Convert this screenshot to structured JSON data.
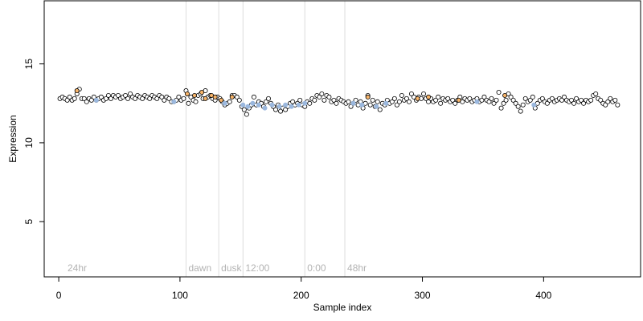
{
  "chart_data": {
    "type": "scatter",
    "title": "",
    "xlabel": "Sample index",
    "ylabel": "Expression",
    "xlim": [
      -12,
      480
    ],
    "ylim": [
      1.5,
      19
    ],
    "x_ticks": [
      0,
      100,
      200,
      300,
      400
    ],
    "y_ticks": [
      5,
      10,
      15
    ],
    "grid": false,
    "legend": "none",
    "colors": {
      "point_outline": "#000000",
      "default_fill": "#ffffff",
      "orange_fill": "#f6b46a",
      "blue_fill": "#9bb8de",
      "annotation_line": "#dcdcdc",
      "annotation_text": "#b3b3b3",
      "axis": "#000000"
    },
    "annotations": [
      {
        "x": 105,
        "label": "dawn"
      },
      {
        "x": 132,
        "label": "dusk"
      },
      {
        "x": 152,
        "label": "12:00"
      },
      {
        "x": 203,
        "label": "0:00"
      },
      {
        "x": 236,
        "label": "48hr"
      }
    ],
    "corner_label": "24hr",
    "colored_points": [
      {
        "x": 15,
        "y": 13.3,
        "fill": "orange"
      },
      {
        "x": 106,
        "y": 13.1,
        "fill": "orange"
      },
      {
        "x": 112,
        "y": 13.0,
        "fill": "orange"
      },
      {
        "x": 118,
        "y": 13.2,
        "fill": "orange"
      },
      {
        "x": 121,
        "y": 12.8,
        "fill": "orange"
      },
      {
        "x": 126,
        "y": 13.0,
        "fill": "orange"
      },
      {
        "x": 129,
        "y": 12.9,
        "fill": "orange"
      },
      {
        "x": 134,
        "y": 12.7,
        "fill": "orange"
      },
      {
        "x": 143,
        "y": 12.9,
        "fill": "orange"
      },
      {
        "x": 255,
        "y": 12.9,
        "fill": "orange"
      },
      {
        "x": 296,
        "y": 12.8,
        "fill": "orange"
      },
      {
        "x": 305,
        "y": 12.9,
        "fill": "orange"
      },
      {
        "x": 330,
        "y": 12.7,
        "fill": "orange"
      },
      {
        "x": 368,
        "y": 13.0,
        "fill": "orange"
      },
      {
        "x": 31,
        "y": 12.7,
        "fill": "blue"
      },
      {
        "x": 95,
        "y": 12.6,
        "fill": "blue"
      },
      {
        "x": 137,
        "y": 12.5,
        "fill": "blue"
      },
      {
        "x": 152,
        "y": 12.4,
        "fill": "blue"
      },
      {
        "x": 156,
        "y": 12.3,
        "fill": "blue"
      },
      {
        "x": 160,
        "y": 12.5,
        "fill": "blue"
      },
      {
        "x": 165,
        "y": 12.4,
        "fill": "blue"
      },
      {
        "x": 170,
        "y": 12.2,
        "fill": "blue"
      },
      {
        "x": 176,
        "y": 12.4,
        "fill": "blue"
      },
      {
        "x": 182,
        "y": 12.3,
        "fill": "blue"
      },
      {
        "x": 187,
        "y": 12.4,
        "fill": "blue"
      },
      {
        "x": 192,
        "y": 12.3,
        "fill": "blue"
      },
      {
        "x": 198,
        "y": 12.4,
        "fill": "blue"
      },
      {
        "x": 203,
        "y": 12.5,
        "fill": "blue"
      },
      {
        "x": 243,
        "y": 12.5,
        "fill": "blue"
      },
      {
        "x": 250,
        "y": 12.4,
        "fill": "blue"
      },
      {
        "x": 262,
        "y": 12.3,
        "fill": "blue"
      },
      {
        "x": 270,
        "y": 12.5,
        "fill": "blue"
      },
      {
        "x": 345,
        "y": 12.6,
        "fill": "blue"
      },
      {
        "x": 392,
        "y": 12.4,
        "fill": "blue"
      }
    ],
    "series": [
      {
        "values": [
          [
            1,
            12.8
          ],
          [
            3,
            12.9
          ],
          [
            5,
            12.8
          ],
          [
            7,
            12.7
          ],
          [
            9,
            12.9
          ],
          [
            11,
            12.7
          ],
          [
            13,
            12.8
          ],
          [
            15,
            13.1
          ],
          [
            17,
            13.4
          ],
          [
            19,
            12.8
          ],
          [
            21,
            12.8
          ],
          [
            23,
            12.6
          ],
          [
            25,
            12.8
          ],
          [
            27,
            12.7
          ],
          [
            29,
            12.9
          ],
          [
            31,
            12.7
          ],
          [
            33,
            12.8
          ],
          [
            35,
            12.9
          ],
          [
            37,
            12.7
          ],
          [
            39,
            12.8
          ],
          [
            41,
            13.0
          ],
          [
            43,
            12.8
          ],
          [
            45,
            13.0
          ],
          [
            47,
            12.9
          ],
          [
            49,
            13.0
          ],
          [
            51,
            12.8
          ],
          [
            53,
            12.9
          ],
          [
            55,
            13.0
          ],
          [
            57,
            12.8
          ],
          [
            59,
            13.1
          ],
          [
            61,
            12.9
          ],
          [
            63,
            12.8
          ],
          [
            65,
            13.0
          ],
          [
            67,
            12.9
          ],
          [
            69,
            12.8
          ],
          [
            71,
            13.0
          ],
          [
            73,
            12.9
          ],
          [
            75,
            12.8
          ],
          [
            77,
            13.0
          ],
          [
            79,
            12.9
          ],
          [
            81,
            12.8
          ],
          [
            83,
            13.0
          ],
          [
            85,
            12.9
          ],
          [
            87,
            12.7
          ],
          [
            89,
            12.9
          ],
          [
            91,
            12.8
          ],
          [
            93,
            12.6
          ],
          [
            95,
            12.6
          ],
          [
            97,
            12.7
          ],
          [
            99,
            12.9
          ],
          [
            101,
            12.7
          ],
          [
            103,
            12.8
          ],
          [
            105,
            13.3
          ],
          [
            107,
            12.5
          ],
          [
            109,
            12.9
          ],
          [
            111,
            12.7
          ],
          [
            113,
            12.6
          ],
          [
            115,
            13.0
          ],
          [
            117,
            13.1
          ],
          [
            119,
            12.8
          ],
          [
            121,
            13.3
          ],
          [
            123,
            12.9
          ],
          [
            125,
            13.0
          ],
          [
            127,
            12.8
          ],
          [
            129,
            12.7
          ],
          [
            131,
            12.9
          ],
          [
            133,
            12.8
          ],
          [
            135,
            12.6
          ],
          [
            137,
            12.4
          ],
          [
            139,
            12.5
          ],
          [
            141,
            12.6
          ],
          [
            143,
            13.0
          ],
          [
            145,
            13.0
          ],
          [
            147,
            12.9
          ],
          [
            149,
            12.7
          ],
          [
            151,
            12.3
          ],
          [
            153,
            12.1
          ],
          [
            155,
            11.8
          ],
          [
            157,
            12.2
          ],
          [
            159,
            12.4
          ],
          [
            161,
            12.9
          ],
          [
            163,
            12.4
          ],
          [
            165,
            12.6
          ],
          [
            167,
            12.5
          ],
          [
            169,
            12.3
          ],
          [
            171,
            12.6
          ],
          [
            173,
            12.8
          ],
          [
            175,
            12.5
          ],
          [
            177,
            12.3
          ],
          [
            179,
            12.1
          ],
          [
            181,
            12.4
          ],
          [
            183,
            12.0
          ],
          [
            185,
            12.2
          ],
          [
            187,
            12.1
          ],
          [
            189,
            12.3
          ],
          [
            191,
            12.5
          ],
          [
            193,
            12.6
          ],
          [
            195,
            12.4
          ],
          [
            197,
            12.5
          ],
          [
            199,
            12.7
          ],
          [
            201,
            12.4
          ],
          [
            203,
            12.3
          ],
          [
            205,
            12.6
          ],
          [
            207,
            12.5
          ],
          [
            209,
            12.8
          ],
          [
            211,
            12.7
          ],
          [
            213,
            13.0
          ],
          [
            215,
            12.9
          ],
          [
            217,
            13.1
          ],
          [
            219,
            12.7
          ],
          [
            221,
            13.0
          ],
          [
            223,
            12.9
          ],
          [
            225,
            12.6
          ],
          [
            227,
            12.7
          ],
          [
            229,
            12.5
          ],
          [
            231,
            12.8
          ],
          [
            233,
            12.7
          ],
          [
            235,
            12.6
          ],
          [
            237,
            12.5
          ],
          [
            239,
            12.6
          ],
          [
            241,
            12.3
          ],
          [
            243,
            12.5
          ],
          [
            245,
            12.7
          ],
          [
            247,
            12.4
          ],
          [
            249,
            12.6
          ],
          [
            251,
            12.2
          ],
          [
            253,
            12.5
          ],
          [
            255,
            13.0
          ],
          [
            257,
            12.4
          ],
          [
            259,
            12.7
          ],
          [
            261,
            12.3
          ],
          [
            263,
            12.6
          ],
          [
            265,
            12.1
          ],
          [
            267,
            12.5
          ],
          [
            269,
            12.4
          ],
          [
            271,
            12.7
          ],
          [
            273,
            12.5
          ],
          [
            275,
            12.6
          ],
          [
            277,
            12.8
          ],
          [
            279,
            12.4
          ],
          [
            281,
            12.6
          ],
          [
            283,
            13.0
          ],
          [
            285,
            12.7
          ],
          [
            287,
            12.8
          ],
          [
            289,
            12.6
          ],
          [
            291,
            13.1
          ],
          [
            293,
            12.9
          ],
          [
            295,
            12.7
          ],
          [
            297,
            12.9
          ],
          [
            299,
            12.8
          ],
          [
            301,
            13.1
          ],
          [
            303,
            12.8
          ],
          [
            305,
            12.6
          ],
          [
            307,
            12.8
          ],
          [
            309,
            12.6
          ],
          [
            311,
            12.7
          ],
          [
            313,
            12.9
          ],
          [
            315,
            12.5
          ],
          [
            317,
            12.8
          ],
          [
            319,
            12.7
          ],
          [
            321,
            12.8
          ],
          [
            323,
            12.6
          ],
          [
            325,
            12.7
          ],
          [
            327,
            12.5
          ],
          [
            329,
            12.7
          ],
          [
            331,
            12.9
          ],
          [
            333,
            12.6
          ],
          [
            335,
            12.8
          ],
          [
            337,
            12.7
          ],
          [
            339,
            12.8
          ],
          [
            341,
            12.6
          ],
          [
            343,
            12.7
          ],
          [
            345,
            12.8
          ],
          [
            347,
            12.6
          ],
          [
            349,
            12.7
          ],
          [
            351,
            12.9
          ],
          [
            353,
            12.7
          ],
          [
            355,
            12.6
          ],
          [
            357,
            12.8
          ],
          [
            359,
            12.5
          ],
          [
            361,
            12.7
          ],
          [
            363,
            13.2
          ],
          [
            365,
            12.2
          ],
          [
            367,
            12.5
          ],
          [
            369,
            12.7
          ],
          [
            371,
            13.1
          ],
          [
            373,
            12.9
          ],
          [
            375,
            12.7
          ],
          [
            377,
            12.5
          ],
          [
            379,
            12.3
          ],
          [
            381,
            12.0
          ],
          [
            383,
            12.4
          ],
          [
            385,
            12.8
          ],
          [
            387,
            12.6
          ],
          [
            389,
            12.7
          ],
          [
            391,
            12.9
          ],
          [
            393,
            12.2
          ],
          [
            395,
            12.5
          ],
          [
            397,
            12.7
          ],
          [
            399,
            12.8
          ],
          [
            401,
            12.6
          ],
          [
            403,
            12.5
          ],
          [
            405,
            12.7
          ],
          [
            407,
            12.8
          ],
          [
            409,
            12.6
          ],
          [
            411,
            12.7
          ],
          [
            413,
            12.8
          ],
          [
            415,
            12.7
          ],
          [
            417,
            12.9
          ],
          [
            419,
            12.7
          ],
          [
            421,
            12.6
          ],
          [
            423,
            12.7
          ],
          [
            425,
            12.5
          ],
          [
            427,
            12.8
          ],
          [
            429,
            12.6
          ],
          [
            431,
            12.7
          ],
          [
            433,
            12.5
          ],
          [
            435,
            12.7
          ],
          [
            437,
            12.6
          ],
          [
            439,
            12.7
          ],
          [
            441,
            13.0
          ],
          [
            443,
            13.1
          ],
          [
            445,
            12.8
          ],
          [
            447,
            12.7
          ],
          [
            449,
            12.5
          ],
          [
            451,
            12.4
          ],
          [
            453,
            12.6
          ],
          [
            455,
            12.8
          ],
          [
            457,
            12.6
          ],
          [
            459,
            12.7
          ],
          [
            461,
            12.4
          ]
        ]
      }
    ]
  }
}
